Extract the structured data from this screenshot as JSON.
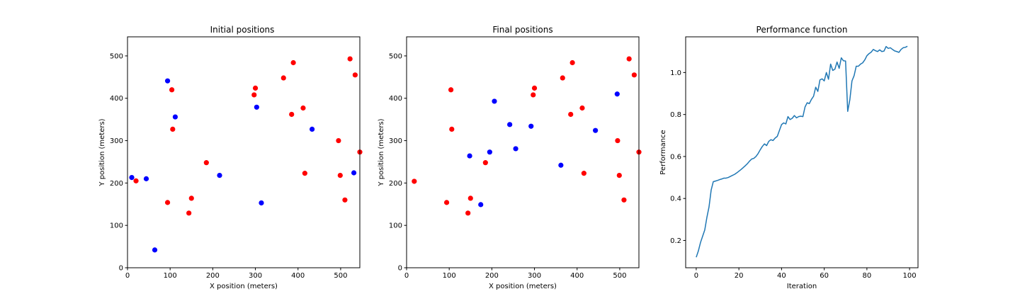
{
  "colors": {
    "red_points": "#ff0000",
    "blue_points": "#0000ff",
    "line": "#1f77b4"
  },
  "chart_data": [
    {
      "type": "scatter",
      "title": "Initial positions",
      "xlabel": "X position (meters)",
      "ylabel": "Y position (meters)",
      "xlim": [
        0,
        545
      ],
      "ylim": [
        0,
        545
      ],
      "xticks": [
        0,
        100,
        200,
        300,
        400,
        500
      ],
      "yticks": [
        0,
        100,
        200,
        300,
        400,
        500
      ],
      "series": [
        {
          "color": "red",
          "points": [
            [
              20,
              205
            ],
            [
              104,
              420
            ],
            [
              106,
              327
            ],
            [
              94,
              154
            ],
            [
              150,
              164
            ],
            [
              144,
              129
            ],
            [
              185,
              248
            ],
            [
              297,
              408
            ],
            [
              300,
              424
            ],
            [
              366,
              448
            ],
            [
              389,
              484
            ],
            [
              385,
              362
            ],
            [
              412,
              377
            ],
            [
              416,
              223
            ],
            [
              495,
              300
            ],
            [
              499,
              218
            ],
            [
              510,
              160
            ],
            [
              522,
              493
            ],
            [
              534,
              455
            ],
            [
              545,
              273
            ]
          ]
        },
        {
          "color": "blue",
          "points": [
            [
              10,
              213
            ],
            [
              44,
              210
            ],
            [
              94,
              441
            ],
            [
              112,
              356
            ],
            [
              64,
              42
            ],
            [
              216,
              218
            ],
            [
              303,
              379
            ],
            [
              314,
              153
            ],
            [
              433,
              327
            ],
            [
              531,
              224
            ]
          ]
        }
      ]
    },
    {
      "type": "scatter",
      "title": "Final positions",
      "xlabel": "X position (meters)",
      "ylabel": "Y position (meters)",
      "xlim": [
        0,
        545
      ],
      "ylim": [
        0,
        545
      ],
      "xticks": [
        0,
        100,
        200,
        300,
        400,
        500
      ],
      "yticks": [
        0,
        100,
        200,
        300,
        400,
        500
      ],
      "series": [
        {
          "color": "red",
          "points": [
            [
              18,
              204
            ],
            [
              104,
              420
            ],
            [
              106,
              327
            ],
            [
              94,
              154
            ],
            [
              150,
              164
            ],
            [
              144,
              129
            ],
            [
              185,
              248
            ],
            [
              297,
              408
            ],
            [
              300,
              424
            ],
            [
              366,
              448
            ],
            [
              389,
              484
            ],
            [
              385,
              362
            ],
            [
              412,
              377
            ],
            [
              416,
              223
            ],
            [
              495,
              300
            ],
            [
              499,
              218
            ],
            [
              510,
              160
            ],
            [
              522,
              493
            ],
            [
              534,
              455
            ],
            [
              545,
              273
            ]
          ]
        },
        {
          "color": "blue",
          "points": [
            [
              148,
              264
            ],
            [
              174,
              149
            ],
            [
              195,
              273
            ],
            [
              206,
              393
            ],
            [
              242,
              338
            ],
            [
              256,
              281
            ],
            [
              292,
              334
            ],
            [
              362,
              242
            ],
            [
              443,
              324
            ],
            [
              494,
              410
            ]
          ]
        }
      ]
    },
    {
      "type": "line",
      "title": "Performance function",
      "xlabel": "Iteration",
      "ylabel": "Performance",
      "xlim": [
        -4.95,
        103.95
      ],
      "ylim": [
        0.07,
        1.17
      ],
      "xticks": [
        0,
        20,
        40,
        60,
        80,
        100
      ],
      "yticks": [
        0.2,
        0.4,
        0.6,
        0.8,
        1.0
      ],
      "ytick_labels": [
        "0.2",
        "0.4",
        "0.6",
        "0.8",
        "1.0"
      ],
      "x": [
        0,
        1,
        2,
        3,
        4,
        5,
        6,
        7,
        8,
        9,
        10,
        11,
        12,
        13,
        14,
        15,
        16,
        17,
        18,
        19,
        20,
        21,
        22,
        23,
        24,
        25,
        26,
        27,
        28,
        29,
        30,
        31,
        32,
        33,
        34,
        35,
        36,
        37,
        38,
        39,
        40,
        41,
        42,
        43,
        44,
        45,
        46,
        47,
        48,
        49,
        50,
        51,
        52,
        53,
        54,
        55,
        56,
        57,
        58,
        59,
        60,
        61,
        62,
        63,
        64,
        65,
        66,
        67,
        68,
        69,
        70,
        71,
        72,
        73,
        74,
        75,
        76,
        77,
        78,
        79,
        80,
        81,
        82,
        83,
        84,
        85,
        86,
        87,
        88,
        89,
        90,
        91,
        92,
        93,
        94,
        95,
        96,
        97,
        98,
        99
      ],
      "values": [
        0.12,
        0.15,
        0.19,
        0.22,
        0.25,
        0.31,
        0.36,
        0.44,
        0.48,
        0.483,
        0.486,
        0.49,
        0.493,
        0.497,
        0.497,
        0.5,
        0.505,
        0.51,
        0.515,
        0.522,
        0.53,
        0.538,
        0.547,
        0.556,
        0.566,
        0.578,
        0.588,
        0.591,
        0.6,
        0.614,
        0.632,
        0.648,
        0.66,
        0.652,
        0.672,
        0.68,
        0.676,
        0.688,
        0.696,
        0.724,
        0.752,
        0.76,
        0.755,
        0.79,
        0.776,
        0.782,
        0.795,
        0.784,
        0.79,
        0.792,
        0.79,
        0.836,
        0.856,
        0.852,
        0.872,
        0.887,
        0.93,
        0.91,
        0.965,
        0.97,
        0.96,
        1.0,
        0.968,
        1.04,
        1.01,
        1.016,
        1.05,
        1.02,
        1.07,
        1.056,
        1.055,
        0.815,
        0.87,
        0.96,
        0.985,
        1.03,
        1.03,
        1.04,
        1.046,
        1.06,
        1.08,
        1.09,
        1.097,
        1.11,
        1.104,
        1.1,
        1.108,
        1.1,
        1.102,
        1.124,
        1.115,
        1.118,
        1.11,
        1.103,
        1.1,
        1.096,
        1.11,
        1.118,
        1.12,
        1.125
      ]
    }
  ]
}
